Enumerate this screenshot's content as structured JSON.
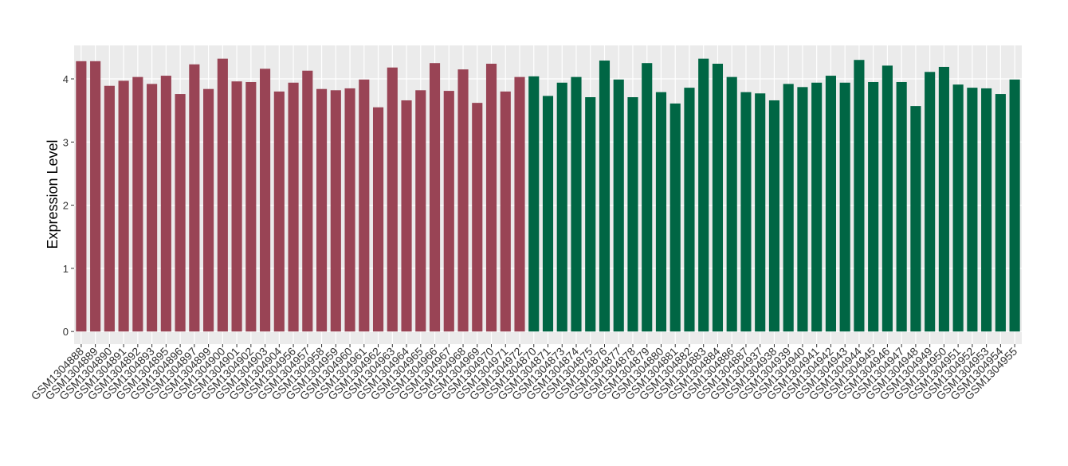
{
  "chart_data": {
    "type": "bar",
    "y_label": "Expression Level",
    "categories": [
      "GSM1304888",
      "GSM1304889",
      "GSM1304890",
      "GSM1304891",
      "GSM1304892",
      "GSM1304893",
      "GSM1304895",
      "GSM1304896",
      "GSM1304897",
      "GSM1304899",
      "GSM1304900",
      "GSM1304901",
      "GSM1304902",
      "GSM1304903",
      "GSM1304904",
      "GSM1304956",
      "GSM1304957",
      "GSM1304958",
      "GSM1304959",
      "GSM1304960",
      "GSM1304961",
      "GSM1304962",
      "GSM1304963",
      "GSM1304964",
      "GSM1304965",
      "GSM1304966",
      "GSM1304967",
      "GSM1304968",
      "GSM1304969",
      "GSM1304970",
      "GSM1304971",
      "GSM1304972",
      "GSM1304870",
      "GSM1304871",
      "GSM1304873",
      "GSM1304874",
      "GSM1304875",
      "GSM1304876",
      "GSM1304877",
      "GSM1304878",
      "GSM1304879",
      "GSM1304880",
      "GSM1304881",
      "GSM1304882",
      "GSM1304883",
      "GSM1304884",
      "GSM1304886",
      "GSM1304887",
      "GSM1304937",
      "GSM1304938",
      "GSM1304939",
      "GSM1304940",
      "GSM1304941",
      "GSM1304942",
      "GSM1304943",
      "GSM1304944",
      "GSM1304945",
      "GSM1304946",
      "GSM1304947",
      "GSM1304948",
      "GSM1304949",
      "GSM1304950",
      "GSM1304951",
      "GSM1304952",
      "GSM1304953",
      "GSM1304954",
      "GSM1304955"
    ],
    "values": [
      4.28,
      4.28,
      3.89,
      3.97,
      4.03,
      3.92,
      4.05,
      3.76,
      4.23,
      3.84,
      4.32,
      3.96,
      3.95,
      4.16,
      3.8,
      3.94,
      4.13,
      3.84,
      3.82,
      3.85,
      3.99,
      3.55,
      4.18,
      3.66,
      3.82,
      4.25,
      3.81,
      4.15,
      3.62,
      4.24,
      3.8,
      4.03,
      4.04,
      3.73,
      3.94,
      4.03,
      3.71,
      4.29,
      3.99,
      3.71,
      4.25,
      3.79,
      3.61,
      3.86,
      4.32,
      4.24,
      4.03,
      3.79,
      3.77,
      3.66,
      3.92,
      3.87,
      3.94,
      4.05,
      3.94,
      4.3,
      3.95,
      4.21,
      3.95,
      3.57,
      4.11,
      4.19,
      3.91,
      3.86,
      3.85,
      3.76,
      3.99
    ],
    "colors": [
      "#994455",
      "#994455",
      "#994455",
      "#994455",
      "#994455",
      "#994455",
      "#994455",
      "#994455",
      "#994455",
      "#994455",
      "#994455",
      "#994455",
      "#994455",
      "#994455",
      "#994455",
      "#994455",
      "#994455",
      "#994455",
      "#994455",
      "#994455",
      "#994455",
      "#994455",
      "#994455",
      "#994455",
      "#994455",
      "#994455",
      "#994455",
      "#994455",
      "#994455",
      "#994455",
      "#994455",
      "#994455",
      "#006644",
      "#006644",
      "#006644",
      "#006644",
      "#006644",
      "#006644",
      "#006644",
      "#006644",
      "#006644",
      "#006644",
      "#006644",
      "#006644",
      "#006644",
      "#006644",
      "#006644",
      "#006644",
      "#006644",
      "#006644",
      "#006644",
      "#006644",
      "#006644",
      "#006644",
      "#006644",
      "#006644",
      "#006644",
      "#006644",
      "#006644",
      "#006644",
      "#006644",
      "#006644",
      "#006644",
      "#006644",
      "#006644",
      "#006644",
      "#006644"
    ],
    "ylim": [
      -0.2,
      4.53
    ],
    "yticks": [
      0,
      1,
      2,
      3,
      4
    ],
    "grid": true
  }
}
